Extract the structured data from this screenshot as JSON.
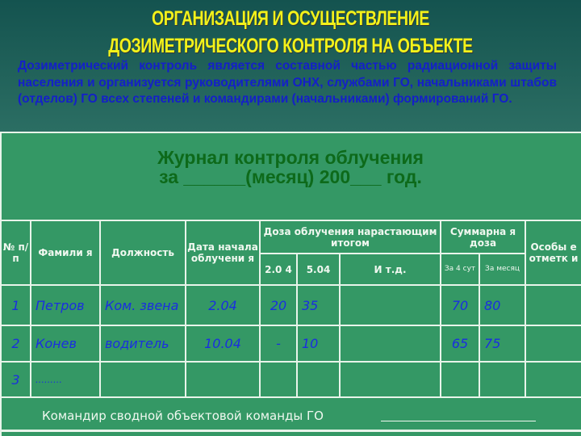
{
  "title": {
    "line1": "ОРГАНИЗАЦИЯ И ОСУЩЕСТВЛЕНИЕ",
    "line2": "ДОЗИМЕТРИЧЕСКОГО КОНТРОЛЯ НА ОБЪЕКТЕ"
  },
  "intro": "Дозиметрический контроль является составной частью радиационной защиты населения и организуется руководителями ОНХ, службами ГО, начальниками штабов (отделов) ГО всех степеней и командирами (начальниками) формирований ГО.",
  "journal": {
    "line1": "Журнал контроля облучения",
    "line2": "за ______(месяц) 200___ год."
  },
  "table": {
    "headers": {
      "num": "№ п/п",
      "surname": "Фамили я",
      "position": "Должность",
      "start_date": "Дата начала облучени я",
      "dose": "Доза облучения нарастающим итогом",
      "dose_sub": [
        "2.0 4",
        "5.04",
        "И т.д."
      ],
      "total": "Суммарна я доза",
      "total_sub": [
        "За 4 сут",
        "За месяц"
      ],
      "notes": "Особы е отметк и"
    },
    "rows": [
      {
        "num": "1",
        "surname": "Петров",
        "position": "Ком. звена",
        "start_date": "2.04",
        "d1": "20",
        "d2": "35",
        "d3": "",
        "t4": "70",
        "tm": "80",
        "notes": ""
      },
      {
        "num": "2",
        "surname": "Конев",
        "position": "водитель",
        "start_date": "10.04",
        "d1": "-",
        "d2": "10",
        "d3": "",
        "t4": "65",
        "tm": "75",
        "notes": ""
      },
      {
        "num": "3",
        "surname": "………",
        "position": "",
        "start_date": "",
        "d1": "",
        "d2": "",
        "d3": "",
        "t4": "",
        "tm": "",
        "notes": ""
      }
    ]
  },
  "footer": "Командир сводной объектовой команды ГО"
}
